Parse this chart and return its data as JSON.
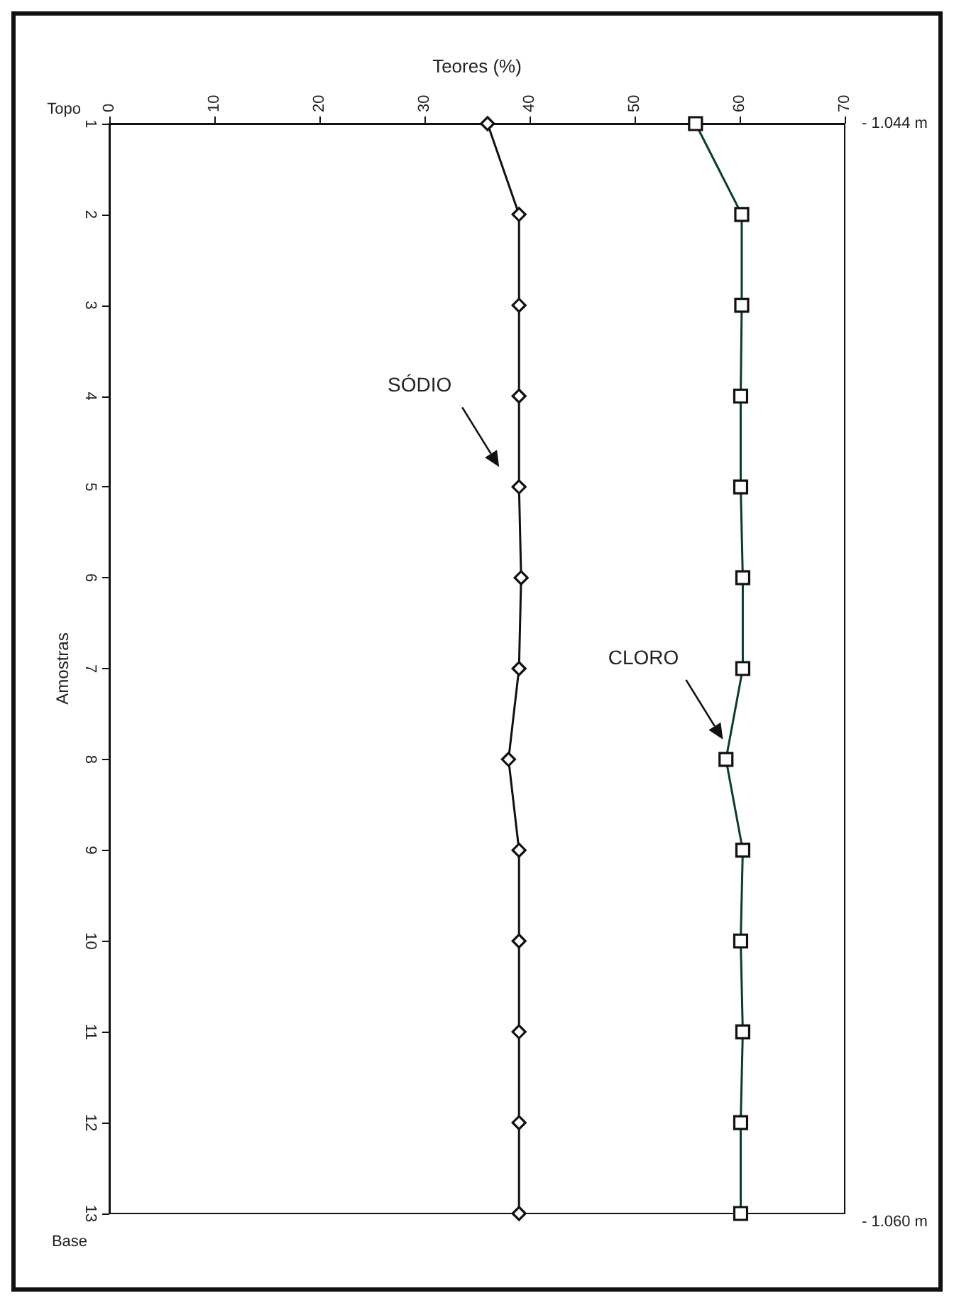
{
  "chart_data": {
    "type": "line",
    "xlabel": "Teores (%)",
    "ylabel": "Amostras",
    "categories": [
      "1",
      "2",
      "3",
      "4",
      "5",
      "6",
      "7",
      "8",
      "9",
      "10",
      "11",
      "12",
      "13"
    ],
    "orientation": "horizontal",
    "series": [
      {
        "name": "SÓDIO",
        "color": "#111111",
        "marker": "diamond",
        "values": [
          36,
          39,
          39,
          39,
          39,
          39.2,
          39,
          38,
          39,
          39,
          39,
          39,
          39
        ]
      },
      {
        "name": "CLORO",
        "color": "#0b3d2e",
        "marker": "square",
        "values": [
          55.8,
          60.2,
          60.2,
          60.1,
          60.1,
          60.3,
          60.3,
          58.7,
          60.3,
          60.1,
          60.3,
          60.1,
          60.1
        ]
      }
    ],
    "xlim": [
      0,
      70
    ],
    "xticks": [
      0,
      10,
      20,
      30,
      40,
      50,
      60,
      70
    ],
    "grid": false,
    "legend": false,
    "annotations": [
      "Topo",
      "Base",
      "- 1.044 m",
      "- 1.060 m"
    ]
  }
}
